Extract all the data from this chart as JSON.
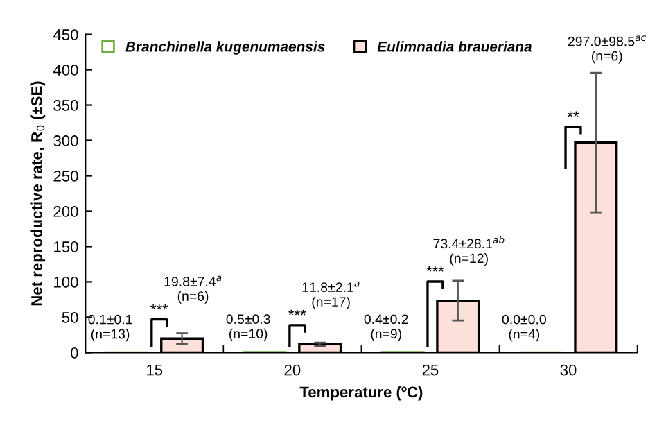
{
  "chart_data": {
    "type": "bar",
    "xlabel": "Temperature (ºC)",
    "ylabel": "Net reproductive rate, R$_{0}$ (±SE)",
    "categories": [
      "15",
      "20",
      "25",
      "30"
    ],
    "series": [
      {
        "name": "Branchinella kugenumaensis",
        "color": "#70ad47",
        "values": [
          0.1,
          0.5,
          0.4,
          0.0
        ],
        "value_labels": [
          "0.1±0.1\n(n=13)",
          "0.5±0.3\n(n=10)",
          "0.4±0.2\n(n=9)",
          "0.0±0.0\n(n=4)"
        ]
      },
      {
        "name": "Eulimnadia braueriana",
        "color": "#fde0d9",
        "values": [
          19.8,
          11.8,
          73.4,
          297.0
        ],
        "errors": [
          7.4,
          2.1,
          28.1,
          98.5
        ],
        "value_labels": [
          "19.8±7.4$^{a}$\n(n=6)",
          "11.8±2.1$^{a}$\n(n=17)",
          "73.4±28.1$^{ab}$\n(n=12)",
          "297.0±98.5$^{ac}$\n(n=6)"
        ]
      }
    ],
    "annotations": [
      "***",
      "***",
      "***",
      "**"
    ],
    "ylim": [
      0,
      450
    ],
    "yticks": [
      0,
      50,
      100,
      150,
      200,
      250,
      300,
      350,
      400,
      450
    ],
    "legend": "top",
    "grid": false
  }
}
